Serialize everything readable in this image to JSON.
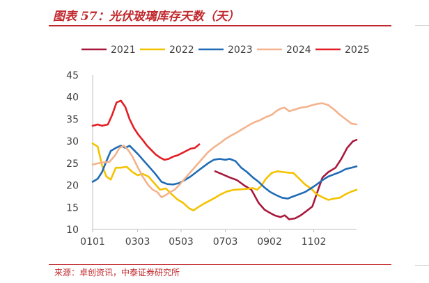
{
  "header": {
    "title": "图表 57：光伏玻璃库存天数（天）"
  },
  "source": "来源：卓创资讯，中泰证券研究所",
  "chart_data": {
    "type": "line",
    "title": "",
    "xlabel": "",
    "ylabel": "",
    "ylim": [
      10,
      45
    ],
    "yticks": [
      "10",
      "15",
      "20",
      "25",
      "30",
      "35",
      "40",
      "45"
    ],
    "xticks": [
      "0101",
      "0303",
      "0503",
      "0703",
      "0902",
      "1102"
    ],
    "xtick_positions": [
      1,
      63,
      123,
      184,
      245,
      306
    ],
    "xlim": [
      1,
      365
    ],
    "grid": false,
    "legend_position": "top",
    "series": [
      {
        "name": "2021",
        "color": "#a8183b",
        "points": [
          [
            170,
            23.2
          ],
          [
            180,
            22.5
          ],
          [
            190,
            21.8
          ],
          [
            200,
            21.2
          ],
          [
            210,
            20.0
          ],
          [
            220,
            19.0
          ],
          [
            230,
            16.0
          ],
          [
            238,
            14.5
          ],
          [
            245,
            13.8
          ],
          [
            252,
            13.2
          ],
          [
            260,
            12.8
          ],
          [
            266,
            13.2
          ],
          [
            272,
            12.3
          ],
          [
            280,
            12.5
          ],
          [
            288,
            13.2
          ],
          [
            296,
            14.2
          ],
          [
            304,
            15.2
          ],
          [
            312,
            19.0
          ],
          [
            318,
            21.8
          ],
          [
            326,
            23.0
          ],
          [
            336,
            24.0
          ],
          [
            344,
            26.0
          ],
          [
            352,
            28.5
          ],
          [
            360,
            30.0
          ],
          [
            365,
            30.3
          ]
        ]
      },
      {
        "name": "2022",
        "color": "#f4c200",
        "points": [
          [
            1,
            29.5
          ],
          [
            8,
            28.8
          ],
          [
            14,
            24.5
          ],
          [
            20,
            22.0
          ],
          [
            26,
            21.3
          ],
          [
            33,
            24.0
          ],
          [
            40,
            24.0
          ],
          [
            48,
            24.2
          ],
          [
            56,
            23.0
          ],
          [
            63,
            22.3
          ],
          [
            70,
            22.6
          ],
          [
            78,
            22.0
          ],
          [
            86,
            20.5
          ],
          [
            94,
            19.0
          ],
          [
            102,
            19.3
          ],
          [
            110,
            18.0
          ],
          [
            118,
            16.8
          ],
          [
            126,
            16.0
          ],
          [
            134,
            14.8
          ],
          [
            140,
            14.3
          ],
          [
            146,
            15.0
          ],
          [
            154,
            15.8
          ],
          [
            162,
            16.5
          ],
          [
            170,
            17.2
          ],
          [
            178,
            18.0
          ],
          [
            186,
            18.6
          ],
          [
            196,
            19.0
          ],
          [
            206,
            19.1
          ],
          [
            214,
            19.2
          ],
          [
            222,
            19.4
          ],
          [
            228,
            19.0
          ],
          [
            234,
            20.0
          ],
          [
            240,
            21.5
          ],
          [
            248,
            22.8
          ],
          [
            256,
            23.2
          ],
          [
            264,
            23.0
          ],
          [
            270,
            22.9
          ],
          [
            278,
            22.8
          ],
          [
            286,
            21.5
          ],
          [
            294,
            20.2
          ],
          [
            302,
            19.3
          ],
          [
            310,
            18.0
          ],
          [
            318,
            17.3
          ],
          [
            326,
            16.7
          ],
          [
            334,
            17.0
          ],
          [
            342,
            17.2
          ],
          [
            350,
            18.0
          ],
          [
            358,
            18.6
          ],
          [
            365,
            19.0
          ]
        ]
      },
      {
        "name": "2023",
        "color": "#1f6bb5",
        "points": [
          [
            1,
            20.8
          ],
          [
            8,
            21.5
          ],
          [
            14,
            23.0
          ],
          [
            20,
            25.5
          ],
          [
            26,
            27.8
          ],
          [
            33,
            28.5
          ],
          [
            40,
            29.0
          ],
          [
            46,
            28.5
          ],
          [
            52,
            29.0
          ],
          [
            58,
            28.0
          ],
          [
            64,
            27.0
          ],
          [
            72,
            25.5
          ],
          [
            80,
            24.0
          ],
          [
            88,
            22.5
          ],
          [
            96,
            20.8
          ],
          [
            104,
            20.3
          ],
          [
            112,
            20.2
          ],
          [
            120,
            20.5
          ],
          [
            128,
            21.2
          ],
          [
            136,
            22.0
          ],
          [
            144,
            23.0
          ],
          [
            152,
            24.0
          ],
          [
            160,
            25.0
          ],
          [
            168,
            25.8
          ],
          [
            176,
            26.0
          ],
          [
            184,
            25.8
          ],
          [
            190,
            26.0
          ],
          [
            198,
            25.5
          ],
          [
            206,
            24.0
          ],
          [
            214,
            23.0
          ],
          [
            222,
            21.8
          ],
          [
            230,
            20.8
          ],
          [
            238,
            19.5
          ],
          [
            246,
            18.5
          ],
          [
            254,
            17.8
          ],
          [
            262,
            17.2
          ],
          [
            270,
            17.0
          ],
          [
            278,
            17.5
          ],
          [
            286,
            18.0
          ],
          [
            294,
            18.5
          ],
          [
            302,
            19.3
          ],
          [
            310,
            20.2
          ],
          [
            318,
            21.2
          ],
          [
            326,
            22.0
          ],
          [
            334,
            22.5
          ],
          [
            342,
            23.0
          ],
          [
            350,
            23.7
          ],
          [
            358,
            24.0
          ],
          [
            365,
            24.3
          ]
        ]
      },
      {
        "name": "2024",
        "color": "#f3b38c",
        "points": [
          [
            1,
            24.7
          ],
          [
            8,
            25.0
          ],
          [
            16,
            25.2
          ],
          [
            24,
            25.3
          ],
          [
            32,
            26.8
          ],
          [
            38,
            28.5
          ],
          [
            44,
            29.0
          ],
          [
            50,
            28.0
          ],
          [
            56,
            26.5
          ],
          [
            62,
            24.5
          ],
          [
            70,
            22.0
          ],
          [
            78,
            20.0
          ],
          [
            84,
            19.0
          ],
          [
            90,
            18.5
          ],
          [
            96,
            17.3
          ],
          [
            102,
            17.8
          ],
          [
            108,
            18.5
          ],
          [
            114,
            19.0
          ],
          [
            120,
            20.0
          ],
          [
            128,
            21.5
          ],
          [
            136,
            23.0
          ],
          [
            144,
            24.5
          ],
          [
            152,
            26.0
          ],
          [
            160,
            27.5
          ],
          [
            168,
            28.6
          ],
          [
            176,
            29.5
          ],
          [
            184,
            30.5
          ],
          [
            192,
            31.3
          ],
          [
            200,
            32.0
          ],
          [
            208,
            32.8
          ],
          [
            216,
            33.6
          ],
          [
            224,
            34.3
          ],
          [
            232,
            34.8
          ],
          [
            240,
            35.5
          ],
          [
            248,
            36.0
          ],
          [
            254,
            36.8
          ],
          [
            260,
            37.4
          ],
          [
            266,
            37.6
          ],
          [
            272,
            36.8
          ],
          [
            280,
            37.2
          ],
          [
            288,
            37.6
          ],
          [
            296,
            37.8
          ],
          [
            304,
            38.2
          ],
          [
            312,
            38.5
          ],
          [
            318,
            38.6
          ],
          [
            326,
            38.2
          ],
          [
            334,
            37.2
          ],
          [
            342,
            36.0
          ],
          [
            350,
            35.0
          ],
          [
            358,
            34.0
          ],
          [
            365,
            33.8
          ]
        ]
      },
      {
        "name": "2025",
        "color": "#e31e24",
        "points": [
          [
            1,
            33.5
          ],
          [
            8,
            33.8
          ],
          [
            14,
            33.5
          ],
          [
            22,
            33.8
          ],
          [
            28,
            36.0
          ],
          [
            34,
            38.8
          ],
          [
            40,
            39.2
          ],
          [
            46,
            37.8
          ],
          [
            52,
            35.0
          ],
          [
            58,
            33.0
          ],
          [
            64,
            31.5
          ],
          [
            70,
            30.3
          ],
          [
            76,
            29.0
          ],
          [
            82,
            28.0
          ],
          [
            88,
            27.0
          ],
          [
            94,
            26.3
          ],
          [
            100,
            25.8
          ],
          [
            106,
            26.0
          ],
          [
            112,
            26.5
          ],
          [
            118,
            26.8
          ],
          [
            124,
            27.3
          ],
          [
            130,
            27.8
          ],
          [
            136,
            28.3
          ],
          [
            142,
            28.5
          ],
          [
            148,
            29.3
          ]
        ]
      }
    ]
  }
}
